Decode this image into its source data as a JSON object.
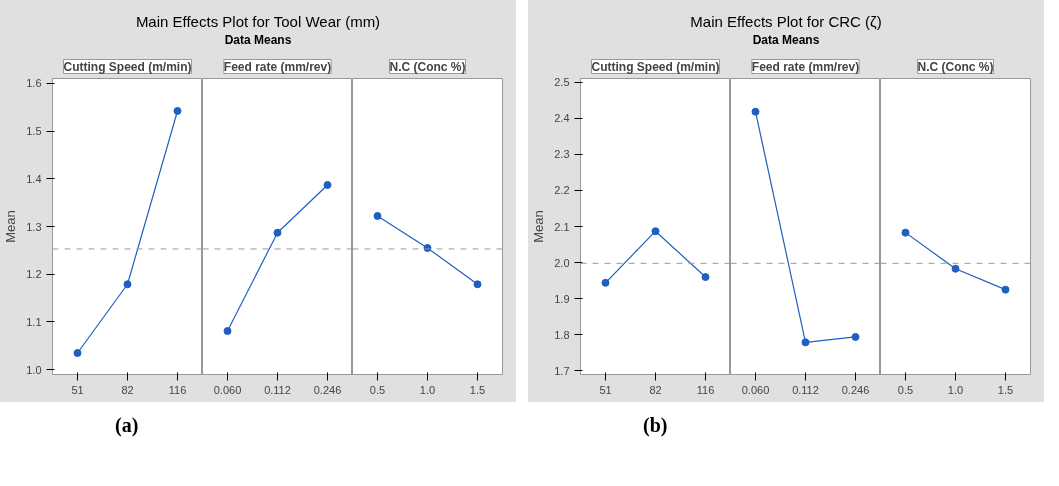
{
  "chart_data": [
    {
      "type": "line",
      "ylabel": "Mean",
      "xlabel": "Cutting Speed (m/min)",
      "categories": [
        "51",
        "82",
        "116"
      ],
      "values": [
        1.035,
        1.179,
        1.542
      ],
      "color": "#1f5fbf",
      "marker": "circle",
      "grid": false,
      "ylim": [
        0.99,
        1.61
      ],
      "yticks": [
        {
          "value": 1,
          "label": "1.0"
        },
        1.1,
        1.2,
        1.3,
        1.4,
        1.5,
        1.6
      ],
      "ref_lines": [
        {
          "axis": "y",
          "value": 1.253,
          "color": "#999999",
          "line_style": "dashed"
        }
      ],
      "annotations": [
        "(a)"
      ]
    },
    {
      "type": "line",
      "title": "Main Effects Plot for Tool Wear (mm)",
      "subtitle": "Data Means",
      "xlabel": "Feed rate (mm/rev)",
      "categories": [
        "0.060",
        "0.112",
        "0.246"
      ],
      "values": [
        1.081,
        1.287,
        1.387
      ],
      "color": "#1f5fbf",
      "marker": "circle",
      "grid": false,
      "ylim": [
        0.99,
        1.61
      ],
      "tick_labels": "x",
      "ref_lines": [
        {
          "axis": "y",
          "value": 1.253,
          "color": "#999999",
          "line_style": "dashed"
        }
      ]
    },
    {
      "type": "line",
      "xlabel": "N.C (Conc %)",
      "categories": [
        "0.5",
        "1.0",
        "1.5"
      ],
      "values": [
        1.322,
        1.255,
        1.179
      ],
      "color": "#1f5fbf",
      "marker": "circle",
      "grid": false,
      "ylim": [
        0.99,
        1.61
      ],
      "tick_labels": "x",
      "ref_lines": [
        {
          "axis": "y",
          "value": 1.253,
          "color": "#999999",
          "line_style": "dashed"
        }
      ]
    },
    {
      "type": "line",
      "ylabel": "Mean",
      "xlabel": "Cutting Speed (m/min)",
      "categories": [
        "51",
        "82",
        "116"
      ],
      "values": [
        1.944,
        2.087,
        1.96
      ],
      "color": "#1f5fbf",
      "marker": "circle",
      "grid": false,
      "ylim": [
        1.69,
        2.51
      ],
      "yticks": [
        1.7,
        1.8,
        1.9,
        {
          "value": 2,
          "label": "2.0"
        },
        2.1,
        2.2,
        2.3,
        2.4,
        2.5
      ],
      "ref_lines": [
        {
          "axis": "y",
          "value": 1.998,
          "color": "#999999",
          "line_style": "dashed"
        }
      ],
      "annotations": [
        "(b)"
      ]
    },
    {
      "type": "line",
      "title": "Main Effects Plot for CRC (ζ)",
      "subtitle": "Data Means",
      "xlabel": "Feed rate (mm/rev)",
      "categories": [
        "0.060",
        "0.112",
        "0.246"
      ],
      "values": [
        2.418,
        1.779,
        1.794
      ],
      "color": "#1f5fbf",
      "marker": "circle",
      "grid": false,
      "ylim": [
        1.69,
        2.51
      ],
      "tick_labels": "x",
      "ref_lines": [
        {
          "axis": "y",
          "value": 1.998,
          "color": "#999999",
          "line_style": "dashed"
        }
      ]
    },
    {
      "type": "line",
      "xlabel": "N.C (Conc %)",
      "categories": [
        "0.5",
        "1.0",
        "1.5"
      ],
      "values": [
        2.083,
        1.983,
        1.925
      ],
      "color": "#1f5fbf",
      "marker": "circle",
      "grid": false,
      "ylim": [
        1.69,
        2.51
      ],
      "tick_labels": "x",
      "ref_lines": [
        {
          "axis": "y",
          "value": 1.998,
          "color": "#999999",
          "line_style": "dashed"
        }
      ]
    }
  ]
}
